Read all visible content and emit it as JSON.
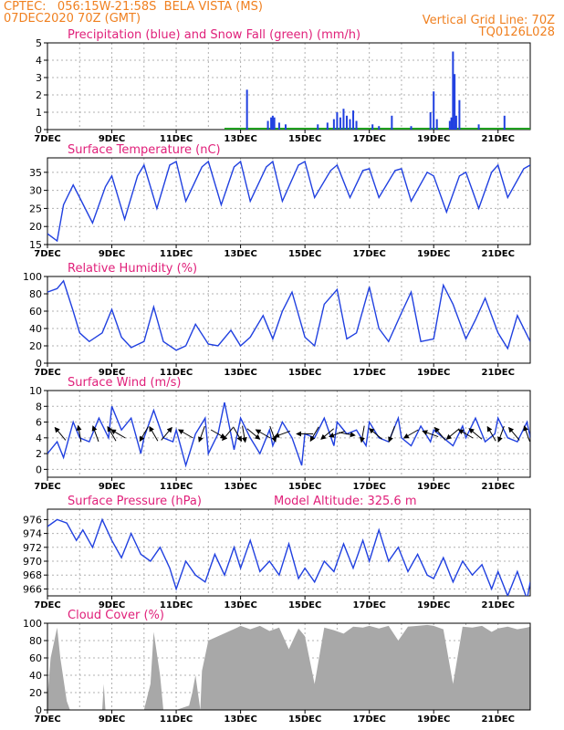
{
  "header": {
    "line1_left": "CPTEC:   056:15W-21:58S  BELA VISTA (MS)",
    "line2_left": "07DEC2020 70Z (GMT)",
    "line1_right": "Vertical Grid Line: 70Z",
    "line2_right": "TQ0126L028",
    "model_altitude": "Model Altitude: 325.6 m"
  },
  "colors": {
    "header": "#f08020",
    "title": "#e0207a",
    "line": "#2040e0",
    "snow": "#20a020",
    "cloud": "#a8a8a8",
    "grid": "#b0b0b0",
    "frame": "#000000"
  },
  "x_axis": {
    "days": [
      "7DEC",
      "9DEC",
      "11DEC",
      "13DEC",
      "15DEC",
      "17DEC",
      "19DEC",
      "21DEC"
    ],
    "start_day": 7,
    "end_day": 22
  },
  "chart_data": [
    {
      "id": "precip",
      "type": "bar",
      "title": "Precipitation (blue) and Snow Fall (green) (mm/h)",
      "ylim": [
        0,
        5
      ],
      "yticks": [
        0,
        1,
        2,
        3,
        4,
        5
      ],
      "series": [
        {
          "name": "Precipitation",
          "x": [
            13.2,
            13.85,
            13.95,
            14.0,
            14.05,
            14.2,
            14.4,
            15.4,
            15.7,
            15.9,
            16.0,
            16.1,
            16.2,
            16.3,
            16.4,
            16.5,
            16.6,
            17.1,
            17.3,
            17.7,
            18.3,
            18.9,
            19.0,
            19.1,
            19.5,
            19.55,
            19.6,
            19.65,
            19.7,
            19.8,
            20.4,
            21.2
          ],
          "values": [
            2.3,
            0.5,
            0.7,
            0.8,
            0.7,
            0.4,
            0.3,
            0.3,
            0.4,
            0.6,
            1.0,
            0.7,
            1.2,
            0.8,
            0.6,
            1.1,
            0.5,
            0.3,
            0.2,
            0.8,
            0.2,
            1.0,
            2.2,
            0.6,
            0.5,
            0.7,
            4.5,
            3.2,
            0.8,
            1.7,
            0.3,
            0.8
          ]
        },
        {
          "name": "Snow Fall",
          "x": [
            12.8,
            13.3,
            13.9,
            14.3,
            14.8,
            15.3,
            15.8,
            16.3,
            16.8,
            17.3,
            17.8,
            18.3,
            18.8,
            19.3,
            19.8,
            20.3,
            20.8,
            21.3,
            21.8
          ],
          "values": [
            0.1,
            0.1,
            0.05,
            0.1,
            0.05,
            0.1,
            0.1,
            0.05,
            0.1,
            0.05,
            0.1,
            0.05,
            0.1,
            0.1,
            0.05,
            0.1,
            0.05,
            0.1,
            0.05
          ]
        }
      ]
    },
    {
      "id": "temp",
      "type": "line",
      "title": "Surface Temperature (nC)",
      "ylim": [
        15,
        39
      ],
      "yticks": [
        15,
        20,
        25,
        30,
        35
      ],
      "series": [
        {
          "name": "Temperature",
          "x": [
            7.0,
            7.3,
            7.5,
            7.8,
            8.0,
            8.4,
            8.8,
            9.0,
            9.4,
            9.8,
            10.0,
            10.4,
            10.8,
            11.0,
            11.3,
            11.8,
            12.0,
            12.4,
            12.8,
            13.0,
            13.3,
            13.8,
            14.0,
            14.3,
            14.8,
            15.0,
            15.3,
            15.8,
            16.0,
            16.4,
            16.8,
            17.0,
            17.3,
            17.8,
            18.0,
            18.3,
            18.8,
            19.0,
            19.4,
            19.8,
            20.0,
            20.4,
            20.8,
            21.0,
            21.3,
            21.8,
            22.0
          ],
          "values": [
            18,
            16,
            26,
            31.5,
            28,
            21,
            31,
            34,
            22,
            34,
            37,
            25,
            37,
            38,
            27,
            36.5,
            38,
            26,
            36.5,
            38,
            27,
            36.5,
            38,
            27,
            37,
            38,
            28,
            35.5,
            37,
            28,
            35.5,
            36,
            28,
            35.5,
            36,
            27,
            35,
            34,
            24,
            34,
            35,
            25,
            35,
            37,
            28,
            36,
            37
          ]
        }
      ]
    },
    {
      "id": "rh",
      "type": "line",
      "title": "Relative Humidity (%)",
      "ylim": [
        0,
        100
      ],
      "yticks": [
        0,
        20,
        40,
        60,
        80,
        100
      ],
      "series": [
        {
          "name": "Relative Humidity",
          "x": [
            7.0,
            7.3,
            7.5,
            7.8,
            8.0,
            8.3,
            8.7,
            9.0,
            9.3,
            9.6,
            10.0,
            10.3,
            10.6,
            11.0,
            11.3,
            11.6,
            12.0,
            12.3,
            12.7,
            13.0,
            13.3,
            13.7,
            14.0,
            14.3,
            14.6,
            15.0,
            15.3,
            15.6,
            16.0,
            16.3,
            16.6,
            17.0,
            17.3,
            17.6,
            18.0,
            18.3,
            18.6,
            19.0,
            19.3,
            19.6,
            20.0,
            20.3,
            20.6,
            21.0,
            21.3,
            21.6,
            22.0
          ],
          "values": [
            82,
            86,
            95,
            60,
            35,
            25,
            35,
            62,
            30,
            18,
            25,
            65,
            25,
            15,
            20,
            45,
            22,
            20,
            38,
            20,
            30,
            55,
            28,
            60,
            82,
            30,
            20,
            68,
            85,
            28,
            35,
            88,
            40,
            25,
            58,
            82,
            25,
            28,
            90,
            68,
            28,
            50,
            75,
            35,
            17,
            55,
            25
          ]
        }
      ]
    },
    {
      "id": "wind",
      "type": "line",
      "title": "Surface Wind (m/s)",
      "ylim": [
        -1,
        10
      ],
      "yticks": [
        0,
        2,
        4,
        6,
        8,
        10
      ],
      "series": [
        {
          "name": "Wind speed",
          "x": [
            7.0,
            7.3,
            7.5,
            7.8,
            8.0,
            8.3,
            8.6,
            8.9,
            9.0,
            9.3,
            9.6,
            9.9,
            10.0,
            10.3,
            10.6,
            10.9,
            11.0,
            11.3,
            11.6,
            11.9,
            12.0,
            12.3,
            12.5,
            12.8,
            13.0,
            13.3,
            13.6,
            13.9,
            14.0,
            14.3,
            14.6,
            14.9,
            15.0,
            15.3,
            15.6,
            15.9,
            16.0,
            16.3,
            16.6,
            16.9,
            17.0,
            17.3,
            17.6,
            17.9,
            18.0,
            18.3,
            18.6,
            18.9,
            19.0,
            19.3,
            19.6,
            19.9,
            20.0,
            20.3,
            20.6,
            20.9,
            21.0,
            21.3,
            21.6,
            21.9,
            22.0
          ],
          "values": [
            2,
            3.5,
            1.5,
            6,
            4,
            3.5,
            6.5,
            4,
            8,
            5,
            6.5,
            2,
            4,
            7.5,
            4,
            3.5,
            5,
            0.5,
            4.5,
            6.5,
            2,
            4.5,
            8.5,
            2.5,
            6.5,
            4,
            2,
            5,
            3,
            6,
            4,
            0.5,
            4.5,
            4,
            6.5,
            3,
            6,
            4.5,
            5,
            3,
            6,
            4,
            3.5,
            6.5,
            4,
            3,
            5.5,
            3.5,
            5,
            4,
            3,
            5.5,
            4,
            6.5,
            3.5,
            4.5,
            6.5,
            4,
            3.5,
            6,
            4
          ]
        }
      ]
    },
    {
      "id": "pressure",
      "type": "line",
      "title": "Surface Pressure (hPa)",
      "ylim": [
        965,
        977.5
      ],
      "yticks": [
        966,
        968,
        970,
        972,
        974,
        976
      ],
      "series": [
        {
          "name": "Pressure",
          "x": [
            7.0,
            7.3,
            7.6,
            7.9,
            8.1,
            8.4,
            8.7,
            9.0,
            9.3,
            9.6,
            9.9,
            10.2,
            10.5,
            10.8,
            11.0,
            11.3,
            11.6,
            11.9,
            12.2,
            12.5,
            12.8,
            13.0,
            13.3,
            13.6,
            13.9,
            14.2,
            14.5,
            14.8,
            15.0,
            15.3,
            15.6,
            15.9,
            16.2,
            16.5,
            16.8,
            17.0,
            17.3,
            17.6,
            17.9,
            18.2,
            18.5,
            18.8,
            19.0,
            19.3,
            19.6,
            19.9,
            20.2,
            20.5,
            20.8,
            21.0,
            21.3,
            21.6,
            21.9,
            22.0
          ],
          "values": [
            975,
            976,
            975.5,
            973,
            974.5,
            972,
            976,
            973,
            970.5,
            974,
            971,
            970,
            972,
            969,
            966,
            970,
            968,
            967,
            971,
            968,
            972,
            969,
            973,
            968.5,
            970,
            968,
            972.5,
            967.5,
            969,
            967,
            970,
            968.5,
            972.5,
            969,
            973,
            970,
            974.5,
            970,
            972,
            968.5,
            971,
            968,
            967.5,
            970.5,
            967,
            970,
            968,
            969.5,
            966,
            968.5,
            965,
            968.5,
            964.5,
            967
          ]
        }
      ]
    },
    {
      "id": "cloud",
      "type": "area",
      "title": "Cloud Cover (%)",
      "ylim": [
        0,
        100
      ],
      "yticks": [
        0,
        20,
        40,
        60,
        80,
        100
      ],
      "series": [
        {
          "name": "Cloud Cover",
          "x": [
            7.0,
            7.1,
            7.3,
            7.4,
            7.6,
            7.7,
            7.9,
            8.0,
            8.7,
            8.75,
            8.8,
            10.0,
            10.2,
            10.3,
            10.5,
            10.6,
            11.0,
            11.4,
            11.5,
            11.6,
            11.75,
            11.8,
            12.0,
            12.3,
            12.6,
            12.9,
            13.0,
            13.3,
            13.6,
            13.9,
            14.2,
            14.5,
            14.8,
            15.0,
            15.3,
            15.6,
            15.9,
            16.2,
            16.5,
            16.8,
            17.0,
            17.3,
            17.6,
            17.9,
            18.2,
            18.5,
            18.8,
            19.0,
            19.3,
            19.6,
            19.9,
            20.2,
            20.5,
            20.8,
            21.0,
            21.3,
            21.6,
            21.9,
            22.0
          ],
          "values": [
            15,
            60,
            95,
            60,
            10,
            0,
            0,
            0,
            0,
            30,
            0,
            0,
            30,
            90,
            40,
            0,
            0,
            5,
            20,
            40,
            0,
            45,
            80,
            85,
            90,
            95,
            97,
            93,
            97,
            91,
            95,
            70,
            94,
            85,
            30,
            95,
            92,
            88,
            96,
            95,
            97,
            94,
            97,
            80,
            96,
            97,
            98,
            97,
            93,
            30,
            96,
            95,
            97,
            90,
            94,
            96,
            93,
            95,
            96
          ]
        }
      ]
    },
    {
      "id": "wind_arrows",
      "type": "scatter",
      "title": "",
      "series": [
        {
          "name": "Wind direction (deg, toward)",
          "x": [
            7.4,
            8.0,
            8.5,
            9.0,
            9.2,
            10.0,
            10.3,
            10.7,
            11.3,
            11.8,
            12.3,
            12.6,
            12.9,
            13.1,
            13.4,
            13.7,
            14.0,
            14.3,
            15.0,
            15.3,
            15.7,
            16.0,
            16.3,
            16.8,
            17.2,
            17.7,
            18.3,
            18.9,
            19.2,
            19.6,
            20.0,
            20.3,
            20.8,
            21.1,
            21.5,
            21.9
          ],
          "values": [
            320,
            350,
            340,
            330,
            300,
            210,
            330,
            40,
            300,
            200,
            120,
            220,
            150,
            170,
            130,
            300,
            160,
            250,
            270,
            210,
            230,
            250,
            100,
            190,
            310,
            200,
            240,
            290,
            320,
            230,
            300,
            310,
            330,
            200,
            320,
            340
          ]
        }
      ]
    }
  ]
}
